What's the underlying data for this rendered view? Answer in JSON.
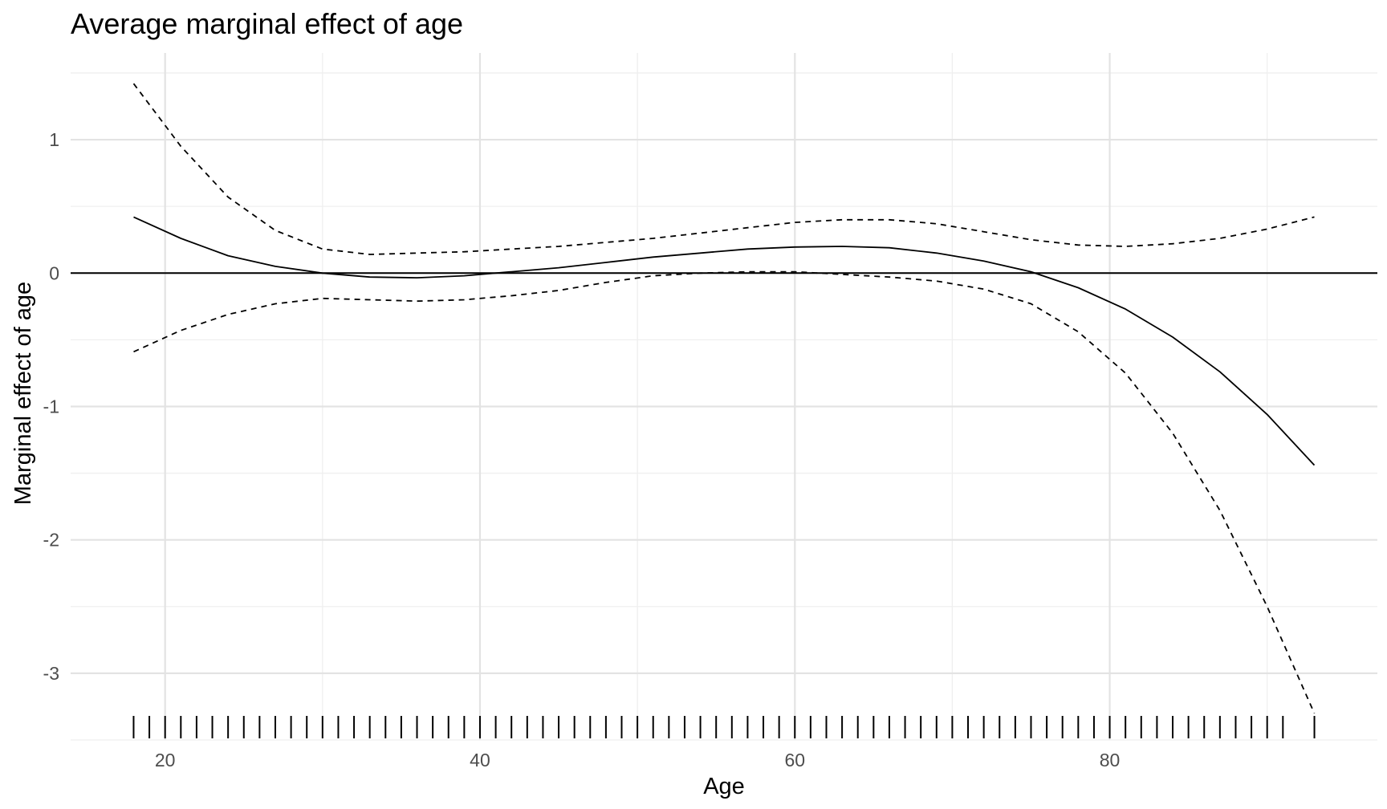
{
  "chart_data": {
    "type": "line",
    "title": "Average marginal effect of age",
    "xlabel": "Age",
    "ylabel": "Marginal effect of age",
    "xlim": [
      14,
      97
    ],
    "ylim": [
      -3.5,
      1.65
    ],
    "x_ticks": [
      20,
      40,
      60,
      80
    ],
    "x_tick_labels": [
      "20",
      "40",
      "60",
      "80"
    ],
    "y_ticks": [
      -3,
      -2,
      -1,
      0,
      1
    ],
    "y_tick_labels": [
      "-3",
      "-2",
      "-1",
      "0",
      "1"
    ],
    "grid": true,
    "reference_line": 0,
    "series": [
      {
        "style": "solid",
        "x": [
          18,
          21,
          24,
          27,
          30,
          33,
          36,
          39,
          42,
          45,
          48,
          51,
          54,
          57,
          60,
          63,
          66,
          69,
          72,
          75,
          78,
          81,
          84,
          87,
          90,
          93
        ],
        "y": [
          0.42,
          0.26,
          0.13,
          0.05,
          0.0,
          -0.03,
          -0.035,
          -0.02,
          0.01,
          0.04,
          0.08,
          0.12,
          0.15,
          0.18,
          0.195,
          0.2,
          0.19,
          0.15,
          0.09,
          0.01,
          -0.11,
          -0.27,
          -0.48,
          -0.74,
          -1.06,
          -1.44
        ]
      },
      {
        "style": "dashed",
        "x": [
          18,
          21,
          24,
          27,
          30,
          33,
          36,
          39,
          42,
          45,
          48,
          51,
          54,
          57,
          60,
          63,
          66,
          69,
          72,
          75,
          78,
          81,
          84,
          87,
          90,
          93
        ],
        "y": [
          1.42,
          0.95,
          0.57,
          0.32,
          0.18,
          0.14,
          0.15,
          0.16,
          0.18,
          0.2,
          0.23,
          0.26,
          0.3,
          0.34,
          0.38,
          0.4,
          0.4,
          0.37,
          0.31,
          0.25,
          0.21,
          0.2,
          0.22,
          0.26,
          0.33,
          0.42
        ]
      },
      {
        "style": "dashed",
        "x": [
          18,
          21,
          24,
          27,
          30,
          33,
          36,
          39,
          42,
          45,
          48,
          51,
          54,
          57,
          60,
          63,
          66,
          69,
          72,
          75,
          78,
          81,
          84,
          87,
          90,
          93
        ],
        "y": [
          -0.59,
          -0.43,
          -0.31,
          -0.23,
          -0.19,
          -0.2,
          -0.21,
          -0.2,
          -0.17,
          -0.13,
          -0.07,
          -0.02,
          0.0,
          0.01,
          0.01,
          -0.01,
          -0.03,
          -0.06,
          -0.12,
          -0.23,
          -0.44,
          -0.75,
          -1.2,
          -1.78,
          -2.5,
          -3.3
        ]
      }
    ],
    "rug": {
      "y": -3.47,
      "x": [
        18,
        19,
        20,
        21,
        22,
        23,
        24,
        25,
        26,
        27,
        28,
        29,
        30,
        31,
        32,
        33,
        34,
        35,
        36,
        37,
        38,
        39,
        40,
        41,
        42,
        43,
        44,
        45,
        46,
        47,
        48,
        49,
        50,
        51,
        52,
        53,
        54,
        55,
        56,
        57,
        58,
        59,
        60,
        61,
        62,
        63,
        64,
        65,
        66,
        67,
        68,
        69,
        70,
        71,
        72,
        73,
        74,
        75,
        76,
        77,
        78,
        79,
        80,
        81,
        82,
        83,
        84,
        85,
        86,
        87,
        88,
        89,
        90,
        91,
        93
      ]
    }
  }
}
